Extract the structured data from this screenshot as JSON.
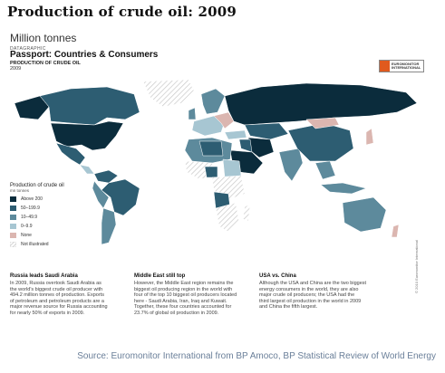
{
  "page_title": "Production of crude oil: 2009",
  "unit_label": "Million tonnes",
  "infographic": {
    "kicker": "DATAGRAPHIC",
    "title": "Passport: Countries & Consumers",
    "subtitle": "PRODUCTION OF CRUDE OIL",
    "year": "2009",
    "logo_text": [
      "EUROMONITOR",
      "INTERNATIONAL"
    ],
    "copyright": "© 2010 Euromonitor International"
  },
  "legend": {
    "title": "Production of crude oil",
    "unit": "mn tonnes",
    "items": [
      {
        "label": "Above 200",
        "color": "#0b2c3c"
      },
      {
        "label": "50–199.9",
        "color": "#2d5d72"
      },
      {
        "label": "10–49.9",
        "color": "#5d8a9c"
      },
      {
        "label": "0–9.9",
        "color": "#a7c6d2"
      },
      {
        "label": "None",
        "color": "#dbb6b0"
      },
      {
        "label": "Not illustrated",
        "color": "hatch"
      }
    ]
  },
  "map_regions": [
    {
      "name": "Canada",
      "class": "50–199.9"
    },
    {
      "name": "USA",
      "class": "Above 200"
    },
    {
      "name": "Mexico",
      "class": "50–199.9"
    },
    {
      "name": "Venezuela",
      "class": "50–199.9"
    },
    {
      "name": "Brazil",
      "class": "50–199.9"
    },
    {
      "name": "Russia",
      "class": "Above 200"
    },
    {
      "name": "Saudi Arabia",
      "class": "Above 200"
    },
    {
      "name": "China",
      "class": "50–199.9"
    },
    {
      "name": "Australia",
      "class": "10–49.9"
    }
  ],
  "notes": [
    {
      "heading": "Russia leads Saudi Arabia",
      "lines": [
        "In 2009, Russia overtook Saudi Arabia as",
        "the world's biggest crude oil producer with",
        "494.2 million tonnes of production. Exports",
        "of petroleum and petroleum products are a",
        "major revenue source for Russia accounting",
        "for nearly 50% of exports in 2009."
      ]
    },
    {
      "heading": "Middle East still top",
      "lines": [
        "However, the Middle East region remains the",
        "biggest oil producing region in the world with",
        "four of the top 10 biggest oil producers located",
        "here - Saudi Arabia, Iran, Iraq and Kuwait.",
        "Together, these four countries accounted for",
        "23.7% of global oil production in 2009."
      ]
    },
    {
      "heading": "USA vs. China",
      "lines": [
        "Although the USA and China are the two biggest",
        "energy consumers in the world, they are also",
        "major crude oil producers; the USA had the",
        "third largest oil production in the world in 2009",
        "and China the fifth largest."
      ]
    }
  ],
  "source": "Source: Euromonitor International from BP Amoco, BP Statistical Review of World Energy"
}
